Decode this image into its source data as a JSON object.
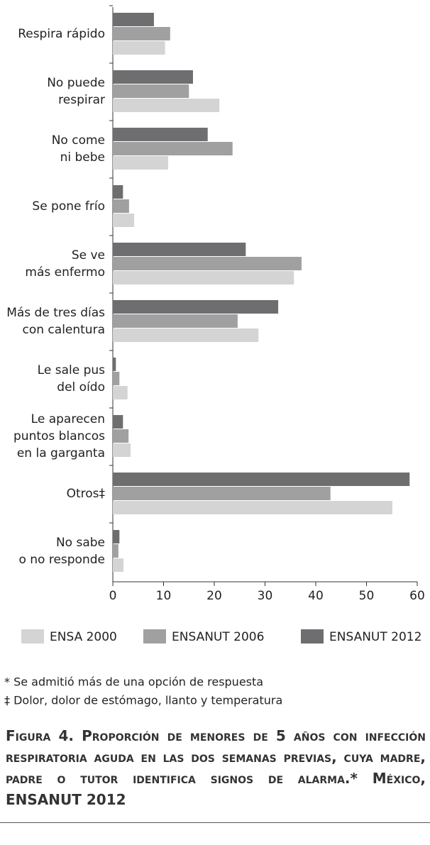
{
  "chart_data": {
    "type": "hbar",
    "categories": [
      [
        "Respira rápido"
      ],
      [
        "No puede",
        "respirar"
      ],
      [
        "No come",
        "ni bebe"
      ],
      [
        "Se pone frío"
      ],
      [
        "Se ve",
        "más enfermo"
      ],
      [
        "Más de tres días",
        "con calentura"
      ],
      [
        "Le sale pus",
        "del oído"
      ],
      [
        "Le aparecen",
        "puntos blancos",
        "en la garganta"
      ],
      [
        "Otros‡"
      ],
      [
        "No sabe",
        "o no responde"
      ]
    ],
    "series": [
      {
        "name": "ENSA 2000",
        "color": "#d4d4d4",
        "values": [
          10.3,
          21.0,
          10.9,
          4.2,
          35.7,
          28.7,
          2.9,
          3.5,
          55.1,
          2.1
        ]
      },
      {
        "name": "ENSANUT 2006",
        "color": "#a0a0a1",
        "values": [
          11.3,
          15.0,
          23.6,
          3.2,
          37.2,
          24.6,
          1.3,
          3.1,
          42.9,
          1.1
        ]
      },
      {
        "name": "ENSANUT 2012",
        "color": "#6e6e70",
        "values": [
          8.1,
          15.8,
          18.7,
          2.0,
          26.2,
          32.6,
          0.6,
          2.0,
          58.5,
          1.3
        ]
      }
    ],
    "xlim": [
      0,
      60
    ],
    "xticks": [
      0,
      10,
      20,
      30,
      40,
      50,
      60
    ],
    "footnotes": [
      "* Se admitió más de una opción de respuesta",
      "‡ Dolor, dolor de estómago, llanto y temperatura"
    ],
    "caption": {
      "label": "Figura 4.",
      "text": "Proporción de menores de 5 años con infección respiratoria aguda en las dos semanas previas, cuya madre, padre o tutor identifica signos de alarma.* México, ENSANUT 2012"
    }
  }
}
